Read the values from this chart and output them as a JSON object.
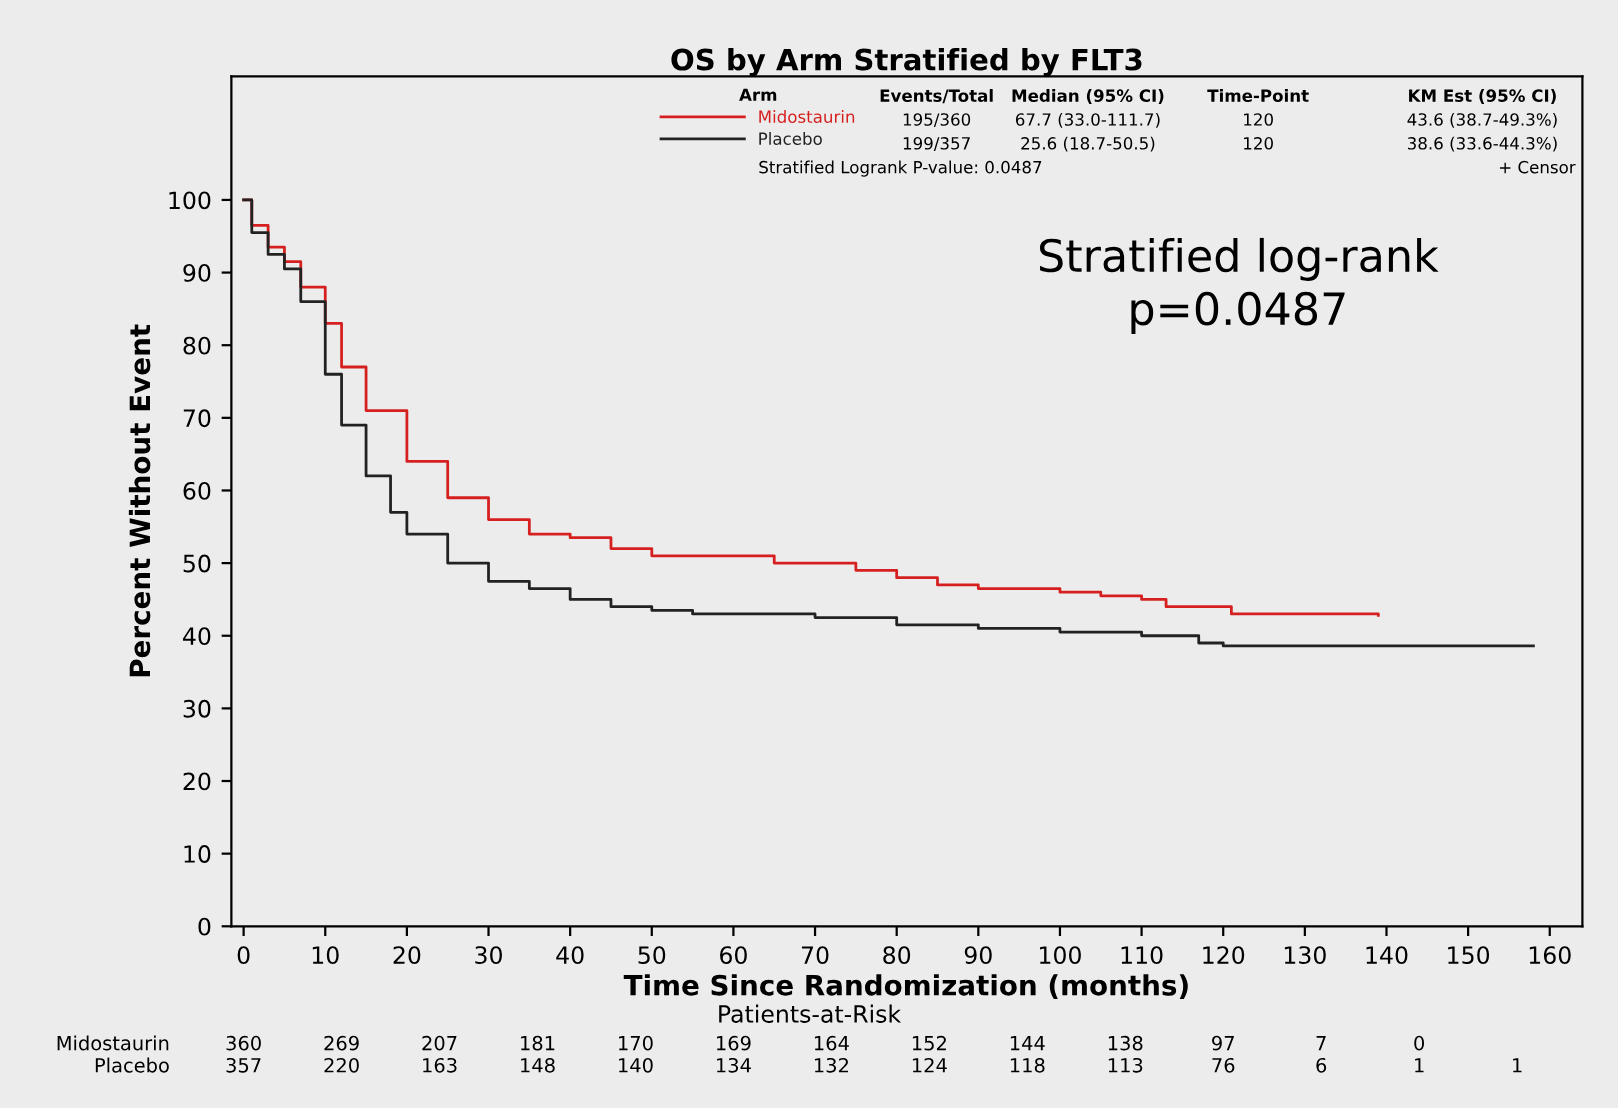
{
  "chart_data": {
    "type": "step",
    "title": "OS by Arm Stratified by FLT3",
    "xlabel": "Time Since Randomization (months)",
    "ylabel": "Percent Without Event",
    "legend_title": "Arm",
    "xlim": [
      -1.5,
      164
    ],
    "ylim": [
      0,
      117
    ],
    "xticks": [
      0,
      10,
      20,
      30,
      40,
      50,
      60,
      70,
      80,
      90,
      100,
      110,
      120,
      130,
      140,
      150,
      160
    ],
    "yticks": [
      0,
      10,
      20,
      30,
      40,
      50,
      60,
      70,
      80,
      90,
      100
    ],
    "grid": false,
    "legend": "top",
    "series": [
      {
        "name": "Midostaurin",
        "color": "#d62020",
        "x": [
          0,
          1,
          3,
          5,
          7,
          10,
          12,
          15,
          20,
          25,
          30,
          35,
          40,
          45,
          50,
          60,
          65,
          70,
          75,
          80,
          85,
          90,
          100,
          105,
          110,
          113,
          118,
          121,
          130,
          139
        ],
        "values": [
          100,
          96.5,
          93.5,
          91.5,
          88,
          83,
          77,
          71,
          64,
          59,
          56,
          54,
          53.5,
          52,
          51,
          51,
          50,
          50,
          49,
          48,
          47,
          46.5,
          46,
          45.5,
          45,
          44,
          44,
          43,
          43,
          42.8
        ]
      },
      {
        "name": "Placebo",
        "color": "#222222",
        "x": [
          0,
          1,
          3,
          5,
          7,
          10,
          12,
          15,
          18,
          20,
          25,
          30,
          35,
          40,
          45,
          50,
          55,
          60,
          70,
          80,
          90,
          100,
          110,
          117,
          120,
          158
        ],
        "values": [
          100,
          95.5,
          92.5,
          90.5,
          86,
          76,
          69,
          62,
          57,
          54,
          50,
          47.5,
          46.5,
          45,
          44,
          43.5,
          43,
          43,
          42.5,
          41.5,
          41,
          40.5,
          40,
          39,
          38.6,
          38.6
        ]
      }
    ],
    "annotations": [
      "Events/Total",
      "Median (95% CI)",
      "Time-Point",
      "KM Est (95% CI)",
      "195/360",
      "67.7 (33.0-111.7)",
      "120",
      "43.6 (38.7-49.3%)",
      "199/357",
      "25.6 (18.7-50.5)",
      "120",
      "38.6 (33.6-44.3%)",
      "Stratified Logrank P-value: 0.0487",
      "+ Censor",
      "Stratified log-rank\np=0.0487",
      "Patients-at-Risk",
      "Midostaurin",
      "360",
      "269",
      "207",
      "181",
      "170",
      "169",
      "164",
      "152",
      "144",
      "138",
      "97",
      "7",
      "0",
      "Placebo",
      "357",
      "220",
      "163",
      "148",
      "140",
      "134",
      "132",
      "124",
      "118",
      "113",
      "76",
      "6",
      "1",
      "1"
    ]
  }
}
